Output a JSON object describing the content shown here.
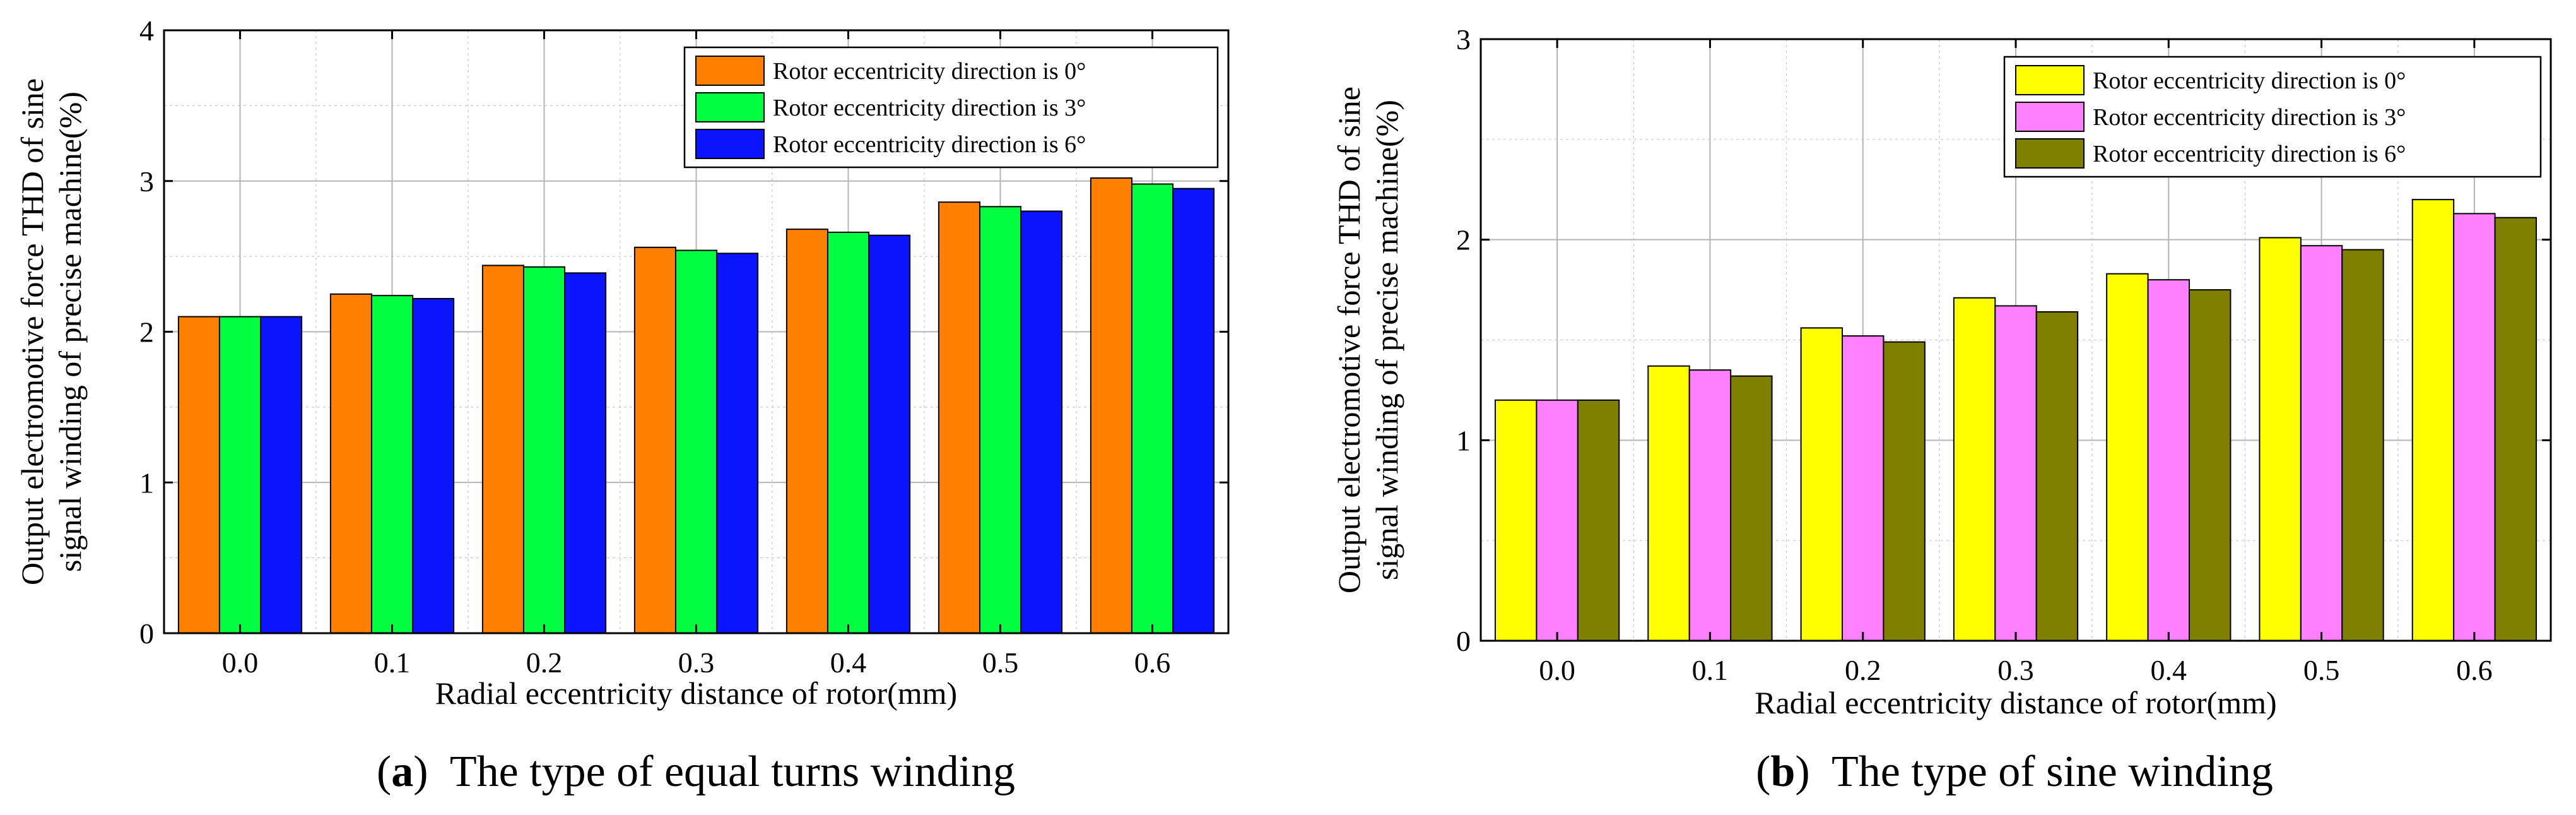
{
  "chart_data": [
    {
      "type": "bar",
      "categories": [
        "0.0",
        "0.1",
        "0.2",
        "0.3",
        "0.4",
        "0.5",
        "0.6"
      ],
      "series": [
        {
          "name": "Rotor eccentricity direction is 0°",
          "color": "#ff8000",
          "values": [
            2.1,
            2.25,
            2.44,
            2.56,
            2.68,
            2.86,
            3.02
          ]
        },
        {
          "name": "Rotor eccentricity direction is 3°",
          "color": "#00ff40",
          "values": [
            2.1,
            2.24,
            2.43,
            2.54,
            2.66,
            2.83,
            2.98
          ]
        },
        {
          "name": "Rotor eccentricity direction is 6°",
          "color": "#0a14ff",
          "values": [
            2.1,
            2.22,
            2.39,
            2.52,
            2.64,
            2.8,
            2.95
          ]
        }
      ],
      "xlabel": "Radial eccentricity distance of rotor(mm)",
      "ylabel_line1": "Output electromotive force THD of sine",
      "ylabel_line2": "signal winding of precise machine(%)",
      "ylim": [
        0,
        4
      ],
      "yticks": [
        "0",
        "1",
        "2",
        "3",
        "4"
      ],
      "legend_position": "top-right",
      "caption_letter": "(a)",
      "caption_open": "(",
      "caption_bold": "a",
      "caption_close": ")",
      "caption_text": "The type of equal turns winding"
    },
    {
      "type": "bar",
      "categories": [
        "0.0",
        "0.1",
        "0.2",
        "0.3",
        "0.4",
        "0.5",
        "0.6"
      ],
      "series": [
        {
          "name": "Rotor eccentricity direction is 0°",
          "color": "#ffff00",
          "values": [
            1.2,
            1.37,
            1.56,
            1.71,
            1.83,
            2.01,
            2.2
          ]
        },
        {
          "name": "Rotor eccentricity direction is 3°",
          "color": "#ff80ff",
          "values": [
            1.2,
            1.35,
            1.52,
            1.67,
            1.8,
            1.97,
            2.13
          ]
        },
        {
          "name": "Rotor eccentricity direction is 6°",
          "color": "#808000",
          "values": [
            1.2,
            1.32,
            1.49,
            1.64,
            1.75,
            1.95,
            2.11
          ]
        }
      ],
      "xlabel": "Radial eccentricity distance of rotor(mm)",
      "ylabel_line1": "Output electromotive force THD of sine",
      "ylabel_line2": "signal winding of precise machine(%)",
      "ylim": [
        0,
        3
      ],
      "yticks": [
        "0",
        "1",
        "2",
        "3"
      ],
      "legend_position": "top-right",
      "caption_letter": "(b)",
      "caption_open": "(",
      "caption_bold": "b",
      "caption_close": ")",
      "caption_text": "The type of sine winding"
    }
  ]
}
